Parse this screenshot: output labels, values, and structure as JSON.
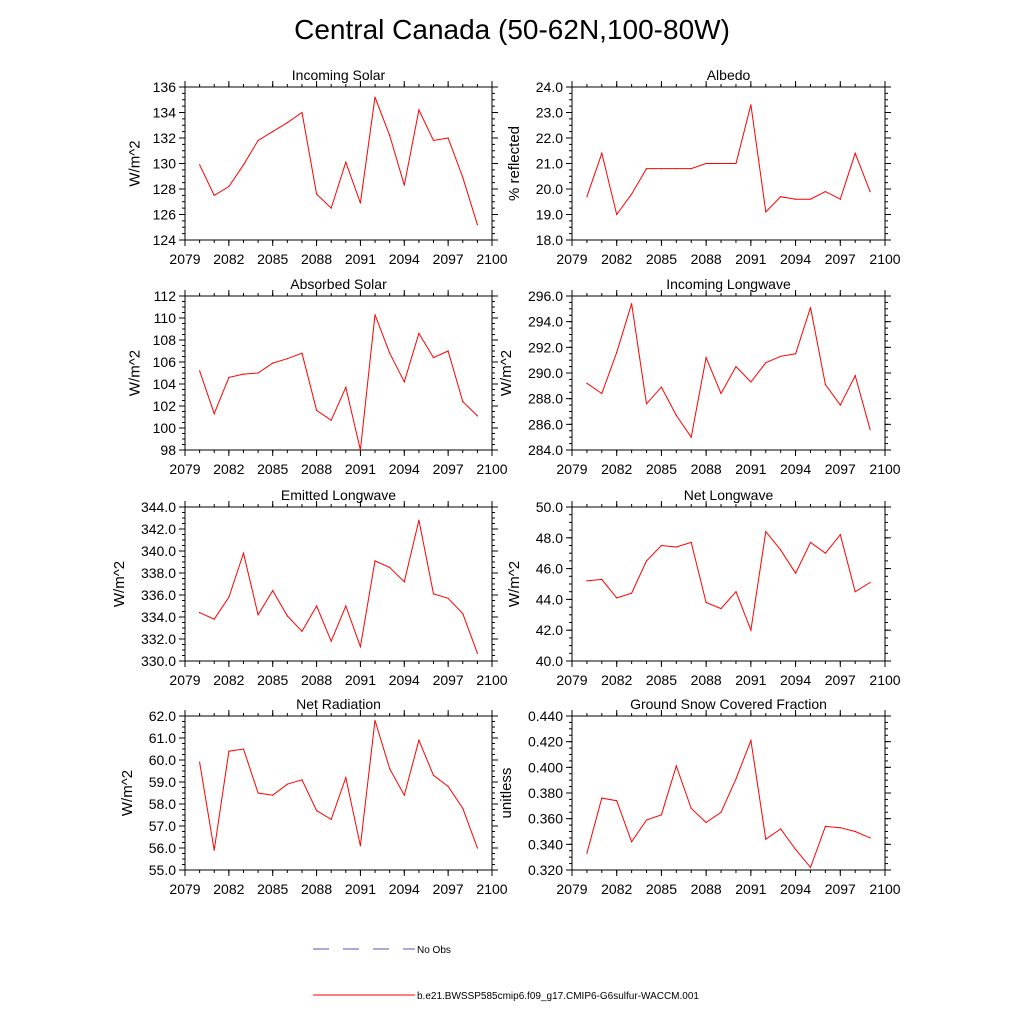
{
  "page": {
    "title": "Central Canada (50-62N,100-80W)"
  },
  "colors": {
    "model_line": "#ff0000",
    "obs_line": "#5555aa",
    "axis": "#000000"
  },
  "legend": [
    {
      "label": "No Obs",
      "style": "dashed",
      "color": "#5555aa"
    },
    {
      "label": "b.e21.BWSSP585cmip6.f09_g17.CMIP6-G6sulfur-WACCM.001",
      "style": "solid",
      "color": "#ff0000"
    }
  ],
  "chart_data": [
    {
      "type": "line",
      "title": "Incoming Solar",
      "ylabel": "W/m^2",
      "xlim": [
        2079,
        2100
      ],
      "ylim": [
        124,
        136
      ],
      "xticks": [
        "2079",
        "2082",
        "2085",
        "2088",
        "2091",
        "2094",
        "2097",
        "2100"
      ],
      "yticks": [
        "124",
        "126",
        "128",
        "130",
        "132",
        "134",
        "136"
      ],
      "x": [
        2080,
        2081,
        2082,
        2083,
        2084,
        2085,
        2086,
        2087,
        2088,
        2089,
        2090,
        2091,
        2092,
        2093,
        2094,
        2095,
        2096,
        2097,
        2098,
        2099
      ],
      "series": [
        {
          "values": [
            129.9,
            127.5,
            128.2,
            129.9,
            131.8,
            132.5,
            133.2,
            134.0,
            127.6,
            126.5,
            130.1,
            126.9,
            135.2,
            132.2,
            128.3,
            134.2,
            131.8,
            132.0,
            128.9,
            125.2
          ]
        }
      ]
    },
    {
      "type": "line",
      "title": "Albedo",
      "ylabel": "% reflected",
      "xlim": [
        2079,
        2100
      ],
      "ylim": [
        18.0,
        24.0
      ],
      "xticks": [
        "2079",
        "2082",
        "2085",
        "2088",
        "2091",
        "2094",
        "2097",
        "2100"
      ],
      "yticks": [
        "18.0",
        "19.0",
        "20.0",
        "21.0",
        "22.0",
        "23.0",
        "24.0"
      ],
      "x": [
        2080,
        2081,
        2082,
        2083,
        2084,
        2085,
        2086,
        2087,
        2088,
        2089,
        2090,
        2091,
        2092,
        2093,
        2094,
        2095,
        2096,
        2097,
        2098,
        2099
      ],
      "series": [
        {
          "values": [
            19.7,
            21.4,
            19.0,
            19.8,
            20.8,
            20.8,
            20.8,
            20.8,
            21.0,
            21.0,
            21.0,
            23.3,
            19.1,
            19.7,
            19.6,
            19.6,
            19.9,
            19.6,
            21.4,
            19.9
          ]
        }
      ]
    },
    {
      "type": "line",
      "title": "Absorbed Solar",
      "ylabel": "W/m^2",
      "xlim": [
        2079,
        2100
      ],
      "ylim": [
        98,
        112
      ],
      "xticks": [
        "2079",
        "2082",
        "2085",
        "2088",
        "2091",
        "2094",
        "2097",
        "2100"
      ],
      "yticks": [
        "98",
        "100",
        "102",
        "104",
        "106",
        "108",
        "110",
        "112"
      ],
      "x": [
        2080,
        2081,
        2082,
        2083,
        2084,
        2085,
        2086,
        2087,
        2088,
        2089,
        2090,
        2091,
        2092,
        2093,
        2094,
        2095,
        2096,
        2097,
        2098,
        2099
      ],
      "series": [
        {
          "values": [
            105.2,
            101.3,
            104.6,
            104.9,
            105.0,
            105.9,
            106.3,
            106.8,
            101.6,
            100.7,
            103.7,
            98.0,
            110.3,
            106.8,
            104.2,
            108.6,
            106.4,
            107.0,
            102.4,
            101.1
          ]
        }
      ]
    },
    {
      "type": "line",
      "title": "Incoming Longwave",
      "ylabel": "W/m^2",
      "xlim": [
        2079,
        2100
      ],
      "ylim": [
        284.0,
        296.0
      ],
      "xticks": [
        "2079",
        "2082",
        "2085",
        "2088",
        "2091",
        "2094",
        "2097",
        "2100"
      ],
      "yticks": [
        "284.0",
        "286.0",
        "288.0",
        "290.0",
        "292.0",
        "294.0",
        "296.0"
      ],
      "x": [
        2080,
        2081,
        2082,
        2083,
        2084,
        2085,
        2086,
        2087,
        2088,
        2089,
        2090,
        2091,
        2092,
        2093,
        2094,
        2095,
        2096,
        2097,
        2098,
        2099
      ],
      "series": [
        {
          "values": [
            289.2,
            288.4,
            291.6,
            295.4,
            287.6,
            288.9,
            286.7,
            285.0,
            291.2,
            288.4,
            290.5,
            289.3,
            290.8,
            291.3,
            291.5,
            295.1,
            289.1,
            287.5,
            289.8,
            285.6
          ]
        }
      ]
    },
    {
      "type": "line",
      "title": "Emitted Longwave",
      "ylabel": "W/m^2",
      "xlim": [
        2079,
        2100
      ],
      "ylim": [
        330.0,
        344.0
      ],
      "xticks": [
        "2079",
        "2082",
        "2085",
        "2088",
        "2091",
        "2094",
        "2097",
        "2100"
      ],
      "yticks": [
        "330.0",
        "332.0",
        "334.0",
        "336.0",
        "338.0",
        "340.0",
        "342.0",
        "344.0"
      ],
      "x": [
        2080,
        2081,
        2082,
        2083,
        2084,
        2085,
        2086,
        2087,
        2088,
        2089,
        2090,
        2091,
        2092,
        2093,
        2094,
        2095,
        2096,
        2097,
        2098,
        2099
      ],
      "series": [
        {
          "values": [
            334.4,
            333.8,
            335.8,
            339.8,
            334.2,
            336.4,
            334.1,
            332.7,
            335.0,
            331.8,
            335.0,
            331.3,
            339.1,
            338.5,
            337.2,
            342.8,
            336.1,
            335.7,
            334.3,
            330.7
          ]
        }
      ]
    },
    {
      "type": "line",
      "title": "Net Longwave",
      "ylabel": "W/m^2",
      "xlim": [
        2079,
        2100
      ],
      "ylim": [
        40.0,
        50.0
      ],
      "xticks": [
        "2079",
        "2082",
        "2085",
        "2088",
        "2091",
        "2094",
        "2097",
        "2100"
      ],
      "yticks": [
        "40.0",
        "42.0",
        "44.0",
        "46.0",
        "48.0",
        "50.0"
      ],
      "x": [
        2080,
        2081,
        2082,
        2083,
        2084,
        2085,
        2086,
        2087,
        2088,
        2089,
        2090,
        2091,
        2092,
        2093,
        2094,
        2095,
        2096,
        2097,
        2098,
        2099
      ],
      "series": [
        {
          "values": [
            45.2,
            45.3,
            44.1,
            44.4,
            46.5,
            47.5,
            47.4,
            47.7,
            43.8,
            43.4,
            44.5,
            42.0,
            48.4,
            47.2,
            45.7,
            47.7,
            47.0,
            48.2,
            44.5,
            45.1
          ]
        }
      ]
    },
    {
      "type": "line",
      "title": "Net Radiation",
      "ylabel": "W/m^2",
      "xlim": [
        2079,
        2100
      ],
      "ylim": [
        55.0,
        62.0
      ],
      "xticks": [
        "2079",
        "2082",
        "2085",
        "2088",
        "2091",
        "2094",
        "2097",
        "2100"
      ],
      "yticks": [
        "55.0",
        "56.0",
        "57.0",
        "58.0",
        "59.0",
        "60.0",
        "61.0",
        "62.0"
      ],
      "x": [
        2080,
        2081,
        2082,
        2083,
        2084,
        2085,
        2086,
        2087,
        2088,
        2089,
        2090,
        2091,
        2092,
        2093,
        2094,
        2095,
        2096,
        2097,
        2098,
        2099
      ],
      "series": [
        {
          "values": [
            59.9,
            55.9,
            60.4,
            60.5,
            58.5,
            58.4,
            58.9,
            59.1,
            57.7,
            57.3,
            59.2,
            56.1,
            61.8,
            59.6,
            58.4,
            60.9,
            59.3,
            58.8,
            57.8,
            56.0
          ]
        }
      ]
    },
    {
      "type": "line",
      "title": "Ground Snow Covered Fraction",
      "ylabel": "unitless",
      "xlim": [
        2079,
        2100
      ],
      "ylim": [
        0.32,
        0.44
      ],
      "xticks": [
        "2079",
        "2082",
        "2085",
        "2088",
        "2091",
        "2094",
        "2097",
        "2100"
      ],
      "yticks": [
        "0.320",
        "0.340",
        "0.360",
        "0.380",
        "0.400",
        "0.420",
        "0.440"
      ],
      "x": [
        2080,
        2081,
        2082,
        2083,
        2084,
        2085,
        2086,
        2087,
        2088,
        2089,
        2090,
        2091,
        2092,
        2093,
        2094,
        2095,
        2096,
        2097,
        2098,
        2099
      ],
      "series": [
        {
          "values": [
            0.333,
            0.376,
            0.374,
            0.342,
            0.359,
            0.363,
            0.401,
            0.368,
            0.357,
            0.365,
            0.391,
            0.421,
            0.344,
            0.352,
            0.336,
            0.322,
            0.354,
            0.353,
            0.35,
            0.345
          ]
        }
      ]
    }
  ]
}
